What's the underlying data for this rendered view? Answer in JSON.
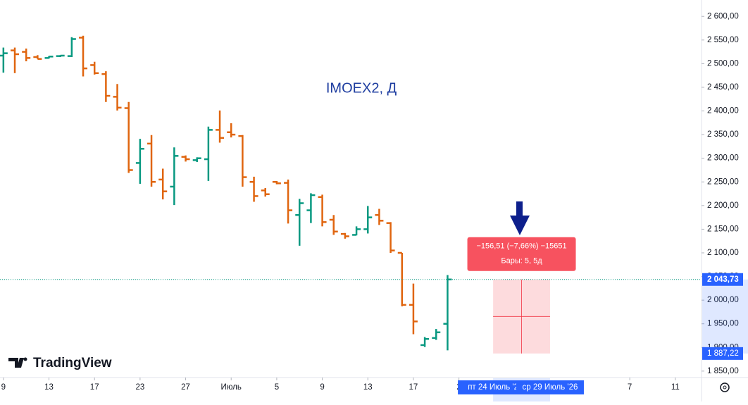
{
  "chart_data": {
    "type": "ohlc",
    "title": "IMOEX2, Д",
    "brand": "TradingView",
    "up_color": "#089981",
    "down_color": "#e0650f",
    "open": [
      2517,
      2528,
      2525,
      2514,
      2512,
      2516,
      2516,
      2555,
      2497,
      2478,
      2430,
      2406,
      2290,
      2331,
      2255,
      2240,
      2303,
      2296,
      2298,
      2360,
      2355,
      2347,
      2250,
      2232,
      2250,
      2248,
      2180,
      2190,
      2218,
      2170,
      2140,
      2138,
      2150,
      2180,
      2163,
      2100,
      1990,
      1905,
      1920,
      1950
    ],
    "high": [
      2534,
      2534,
      2532,
      2518,
      2516,
      2518,
      2556,
      2559,
      2504,
      2484,
      2457,
      2419,
      2341,
      2349,
      2278,
      2323,
      2306,
      2302,
      2367,
      2401,
      2374,
      2349,
      2261,
      2237,
      2252,
      2255,
      2214,
      2226,
      2223,
      2180,
      2142,
      2156,
      2199,
      2193,
      2165,
      2100,
      2035,
      1922,
      1939,
      2053
    ],
    "low": [
      2481,
      2480,
      2505,
      2510,
      2511,
      2514,
      2514,
      2473,
      2477,
      2419,
      2401,
      2269,
      2246,
      2240,
      2213,
      2201,
      2293,
      2292,
      2252,
      2333,
      2344,
      2240,
      2208,
      2219,
      2245,
      2162,
      2115,
      2163,
      2156,
      2138,
      2130,
      2137,
      2141,
      2159,
      2100,
      1987,
      1928,
      1901,
      1916,
      1894
    ],
    "close": [
      2522,
      2520,
      2512,
      2510,
      2515,
      2517,
      2552,
      2490,
      2480,
      2432,
      2407,
      2275,
      2320,
      2250,
      2230,
      2305,
      2298,
      2300,
      2360,
      2343,
      2350,
      2260,
      2220,
      2224,
      2247,
      2190,
      2205,
      2222,
      2165,
      2145,
      2135,
      2150,
      2175,
      2168,
      2105,
      1990,
      1955,
      1918,
      1932,
      2043.73
    ],
    "xlim": [
      -0.3,
      61.3
    ],
    "xticks": [
      {
        "value": 0,
        "label": "9"
      },
      {
        "value": 4,
        "label": "13"
      },
      {
        "value": 8,
        "label": "17"
      },
      {
        "value": 12,
        "label": "23"
      },
      {
        "value": 16,
        "label": "27"
      },
      {
        "value": 20,
        "label": "Июль"
      },
      {
        "value": 24,
        "label": "5"
      },
      {
        "value": 28,
        "label": "9"
      },
      {
        "value": 32,
        "label": "13"
      },
      {
        "value": 36,
        "label": "17"
      },
      {
        "value": 40,
        "label": "2"
      },
      {
        "value": 55,
        "label": "7"
      },
      {
        "value": 59,
        "label": "11"
      }
    ],
    "ylim": [
      1836.4,
      2634.6
    ],
    "yticks": [
      {
        "value": 1850,
        "label": "1 850,00"
      },
      {
        "value": 1900,
        "label": "1 900,00"
      },
      {
        "value": 1950,
        "label": "1 950,00"
      },
      {
        "value": 2000,
        "label": "2 000,00"
      },
      {
        "value": 2050,
        "label": "2 050,00"
      },
      {
        "value": 2100,
        "label": "2 100,00"
      },
      {
        "value": 2150,
        "label": "2 150,00"
      },
      {
        "value": 2200,
        "label": "2 200,00"
      },
      {
        "value": 2250,
        "label": "2 250,00"
      },
      {
        "value": 2300,
        "label": "2 300,00"
      },
      {
        "value": 2350,
        "label": "2 350,00"
      },
      {
        "value": 2400,
        "label": "2 400,00"
      },
      {
        "value": 2450,
        "label": "2 450,00"
      },
      {
        "value": 2500,
        "label": "2 500,00"
      },
      {
        "value": 2550,
        "label": "2 550,00"
      },
      {
        "value": 2600,
        "label": "2 600,00"
      }
    ],
    "last_price": {
      "value": 2043.73,
      "label": "2 043,73"
    },
    "measure": {
      "from": {
        "value": 2043.73,
        "label": "2 043,73"
      },
      "to": {
        "value": 1887.22,
        "label": "1 887,22"
      },
      "x_from": {
        "value": 43,
        "label": "пт 24 Июль '2"
      },
      "x_to": {
        "value": 48,
        "label": "ср 29 Июль '26"
      },
      "change_label": "−156,51 (−7,66%) −15651",
      "bars_label": "Бары: 5, 5д"
    }
  }
}
